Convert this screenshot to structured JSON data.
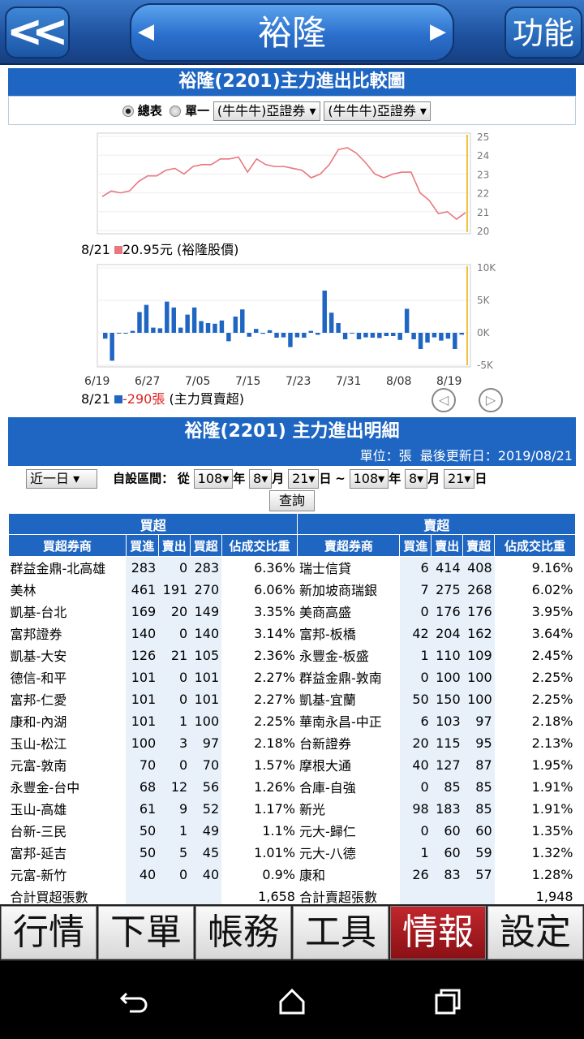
{
  "header": {
    "back": "<<",
    "title": "裕隆",
    "func": "功能"
  },
  "chart": {
    "title": "裕隆(2201)主力進出比較圖",
    "radio_all": "總表",
    "radio_single": "單一",
    "select1": "(牛牛牛)亞證券",
    "select2": "(牛牛牛)亞證券",
    "price_label_date": "8/21",
    "price_label_value": "20.95元",
    "price_label_name": "(裕隆股價)",
    "vol_label_date": "8/21",
    "vol_label_value": "-290張",
    "vol_label_name": "(主力買賣超)"
  },
  "chart_data": [
    {
      "type": "line",
      "title": "",
      "ylim": [
        20,
        25
      ],
      "yticks": [
        "25",
        "24",
        "23",
        "22",
        "21",
        "20"
      ],
      "values": [
        21.8,
        22.1,
        22.0,
        22.1,
        22.6,
        22.9,
        22.9,
        23.2,
        23.3,
        23.0,
        23.4,
        23.5,
        23.5,
        23.8,
        23.8,
        23.9,
        23.1,
        23.8,
        23.5,
        23.4,
        23.4,
        23.3,
        23.2,
        22.8,
        23.0,
        23.5,
        24.3,
        24.4,
        24.1,
        23.6,
        23.0,
        22.8,
        23.0,
        23.1,
        23.1,
        22.0,
        21.6,
        20.9,
        21.0,
        20.6,
        20.95
      ],
      "color": "#e8777f"
    },
    {
      "type": "bar",
      "title": "",
      "ylim": [
        -5000,
        10000
      ],
      "yticks": [
        "10K",
        "5K",
        "0K",
        "-5K"
      ],
      "xticks": [
        "6/19",
        "6/27",
        "7/05",
        "7/15",
        "7/23",
        "7/31",
        "8/08",
        "8/19"
      ],
      "values": [
        -900,
        -4300,
        0,
        0,
        300,
        3200,
        4300,
        800,
        700,
        4800,
        3900,
        800,
        2800,
        3900,
        1800,
        1500,
        1400,
        1900,
        -1300,
        2500,
        3600,
        -600,
        600,
        -150,
        400,
        -750,
        -700,
        -2200,
        -700,
        -750,
        300,
        -300,
        6500,
        3100,
        1500,
        -1000,
        0,
        -1000,
        -700,
        -750,
        -800,
        -500,
        -500,
        -1100,
        3700,
        -1000,
        -2500,
        -1500,
        -700,
        -1200,
        -900,
        -2500,
        -290
      ],
      "color": "#1f66c2"
    }
  ],
  "detail": {
    "title": "裕隆(2201) 主力進出明細",
    "unit": "單位：張",
    "updated": "最後更新日：2019/08/21",
    "period": "近一日",
    "custom": "自設區間：",
    "from": "從",
    "y1": "108",
    "m1": "8",
    "d1": "21",
    "y2": "108",
    "m2": "8",
    "d2": "21",
    "year": "年",
    "month": "月",
    "day": "日",
    "tilde": "~",
    "query": "查詢",
    "buy_group": "買超",
    "sell_group": "賣超",
    "cols_buy": [
      "買超券商",
      "買進",
      "賣出",
      "買超",
      "佔成交比重"
    ],
    "cols_sell": [
      "賣超券商",
      "買進",
      "賣出",
      "賣超",
      "佔成交比重"
    ],
    "rows": [
      [
        "群益金鼎-北高雄",
        "283",
        "0",
        "283",
        "6.36%",
        "瑞士信貸",
        "6",
        "414",
        "408",
        "9.16%"
      ],
      [
        "美林",
        "461",
        "191",
        "270",
        "6.06%",
        "新加坡商瑞銀",
        "7",
        "275",
        "268",
        "6.02%"
      ],
      [
        "凱基-台北",
        "169",
        "20",
        "149",
        "3.35%",
        "美商高盛",
        "0",
        "176",
        "176",
        "3.95%"
      ],
      [
        "富邦證券",
        "140",
        "0",
        "140",
        "3.14%",
        "富邦-板橋",
        "42",
        "204",
        "162",
        "3.64%"
      ],
      [
        "凱基-大安",
        "126",
        "21",
        "105",
        "2.36%",
        "永豐金-板盛",
        "1",
        "110",
        "109",
        "2.45%"
      ],
      [
        "德信-和平",
        "101",
        "0",
        "101",
        "2.27%",
        "群益金鼎-敦南",
        "0",
        "100",
        "100",
        "2.25%"
      ],
      [
        "富邦-仁愛",
        "101",
        "0",
        "101",
        "2.27%",
        "凱基-宜蘭",
        "50",
        "150",
        "100",
        "2.25%"
      ],
      [
        "康和-內湖",
        "101",
        "1",
        "100",
        "2.25%",
        "華南永昌-中正",
        "6",
        "103",
        "97",
        "2.18%"
      ],
      [
        "玉山-松江",
        "100",
        "3",
        "97",
        "2.18%",
        "台新證券",
        "20",
        "115",
        "95",
        "2.13%"
      ],
      [
        "元富-敦南",
        "70",
        "0",
        "70",
        "1.57%",
        "摩根大通",
        "40",
        "127",
        "87",
        "1.95%"
      ],
      [
        "永豐金-台中",
        "68",
        "12",
        "56",
        "1.26%",
        "合庫-自強",
        "0",
        "85",
        "85",
        "1.91%"
      ],
      [
        "玉山-高雄",
        "61",
        "9",
        "52",
        "1.17%",
        "新光",
        "98",
        "183",
        "85",
        "1.91%"
      ],
      [
        "台新-三民",
        "50",
        "1",
        "49",
        "1.1%",
        "元大-歸仁",
        "0",
        "60",
        "60",
        "1.35%"
      ],
      [
        "富邦-延吉",
        "50",
        "5",
        "45",
        "1.01%",
        "元大-八德",
        "1",
        "60",
        "59",
        "1.32%"
      ],
      [
        "元富-新竹",
        "40",
        "0",
        "40",
        "0.9%",
        "康和",
        "26",
        "83",
        "57",
        "1.28%"
      ]
    ],
    "total_buy_label": "合計買超張數",
    "total_buy": "1,658",
    "total_sell_label": "合計賣超張數",
    "total_sell": "1,948"
  },
  "tabs": [
    "行情",
    "下單",
    "帳務",
    "工具",
    "情報",
    "設定"
  ]
}
